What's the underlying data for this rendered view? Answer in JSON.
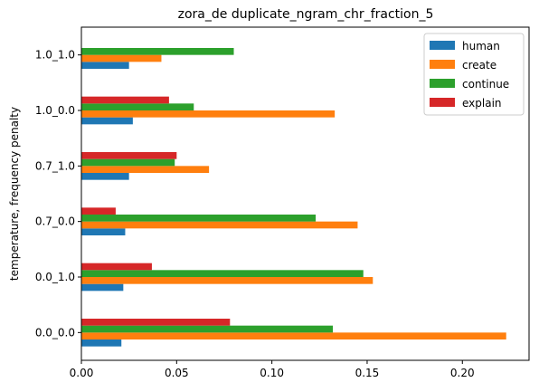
{
  "chart_data": {
    "type": "bar",
    "orientation": "horizontal",
    "title": "zora_de duplicate_ngram_chr_fraction_5",
    "xlabel": "",
    "ylabel": "temperature, frequency penalty",
    "categories": [
      "0.0_0.0",
      "0.0_1.0",
      "0.7_0.0",
      "0.7_1.0",
      "1.0_0.0",
      "1.0_1.0"
    ],
    "xlim": [
      0,
      0.235
    ],
    "xticks": [
      0.0,
      0.05,
      0.1,
      0.15,
      0.2
    ],
    "xtick_labels": [
      "0.00",
      "0.05",
      "0.10",
      "0.15",
      "0.20"
    ],
    "legend_position": "top-right",
    "grid": false,
    "series": [
      {
        "name": "human",
        "color": "#1f77b4",
        "values": [
          0.021,
          0.022,
          0.023,
          0.025,
          0.027,
          0.025
        ]
      },
      {
        "name": "create",
        "color": "#ff7f0e",
        "values": [
          0.223,
          0.153,
          0.145,
          0.067,
          0.133,
          0.042
        ]
      },
      {
        "name": "continue",
        "color": "#2ca02c",
        "values": [
          0.132,
          0.148,
          0.123,
          0.049,
          0.059,
          0.08
        ]
      },
      {
        "name": "explain",
        "color": "#d62728",
        "values": [
          0.078,
          0.037,
          0.018,
          0.05,
          0.046,
          null
        ]
      }
    ]
  }
}
